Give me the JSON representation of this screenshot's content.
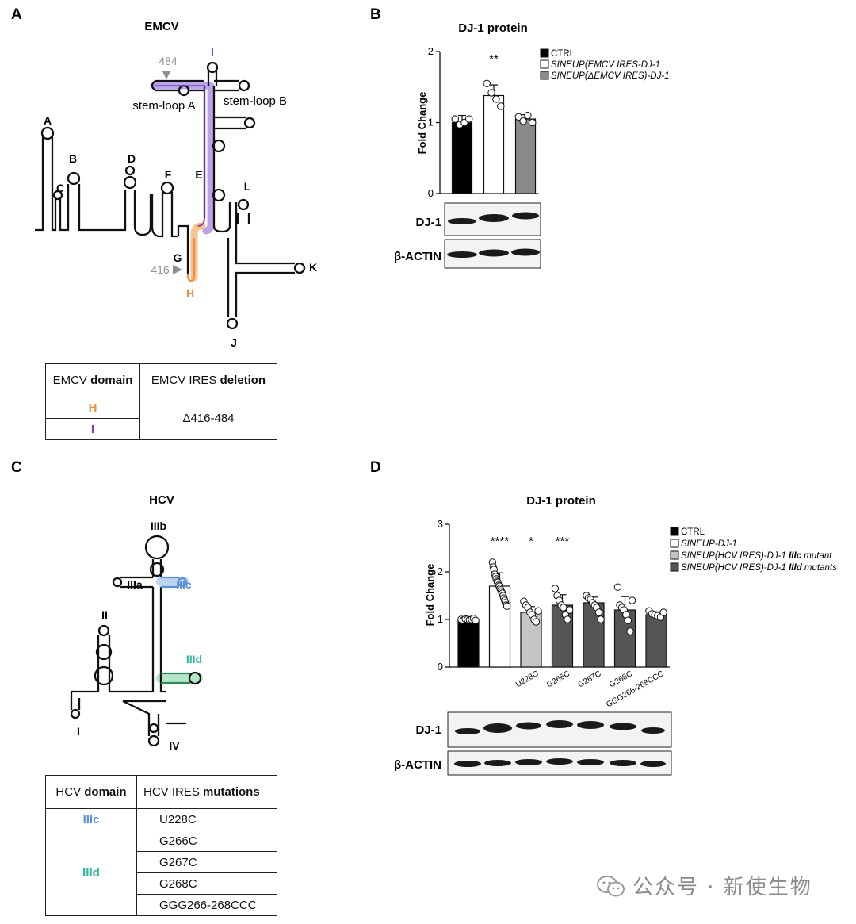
{
  "panels": {
    "A": {
      "letter": "A",
      "title": "EMCV",
      "labels": {
        "A": "A",
        "B": "B",
        "C": "C",
        "D": "D",
        "E": "E",
        "F": "F",
        "G": "G",
        "H": "H",
        "I": "I",
        "J": "J",
        "K": "K",
        "L": "L"
      },
      "marks": {
        "pos484": "484",
        "pos416": "416",
        "stemA": "stem-loop A",
        "stemB": "stem-loop B"
      },
      "table": {
        "header_domain_prefix": "EMCV ",
        "header_domain_bold": "domain",
        "header_del_prefix": "EMCV IRES ",
        "header_del_bold": "deletion",
        "rows": [
          "H",
          "I"
        ],
        "deletion": "Δ416-484"
      }
    },
    "B": {
      "letter": "B",
      "blot_labels": [
        "DJ-1",
        "β-ACTIN"
      ]
    },
    "C": {
      "letter": "C",
      "title": "HCV",
      "labels": {
        "IIIb": "IIIb",
        "IIIa": "IIIa",
        "IIIc": "IIIc",
        "II": "II",
        "IIId": "IIId",
        "I": "I",
        "IV": "IV"
      },
      "table": {
        "header_domain_prefix": "HCV ",
        "header_domain_bold": "domain",
        "header_mut_prefix": "HCV IRES ",
        "header_mut_bold": "mutations",
        "groups": [
          {
            "domain": "IIIc",
            "mutations": [
              "U228C"
            ]
          },
          {
            "domain": "IIId",
            "mutations": [
              "G266C",
              "G267C",
              "G268C",
              "GGG266-268CCC"
            ]
          }
        ]
      }
    },
    "D": {
      "letter": "D",
      "blot_labels": [
        "DJ-1",
        "β-ACTIN"
      ]
    }
  },
  "colors": {
    "orange": "#f28c38",
    "purple": "#7b3fc4",
    "blue": "#5b8fd6",
    "teal": "#2ab5a0",
    "gray_mark": "#8f8f8f",
    "bar_black": "#000000",
    "bar_white": "#ffffff",
    "bar_gray": "#8a8a8a",
    "bar_light": "#c4c4c4",
    "bar_dark": "#555555"
  },
  "chart_data": [
    {
      "type": "bar",
      "title": "DJ-1 protein",
      "xlabel": "",
      "ylabel": "Fold Change",
      "ylim": [
        0,
        2
      ],
      "yticks": [
        0,
        1,
        2
      ],
      "categories": [
        "CTRL",
        "SINEUP(EMCV IRES-DJ-1",
        "SINEUP(ΔEMCV IRES)-DJ-1"
      ],
      "values": [
        1.0,
        1.38,
        1.05
      ],
      "errors": [
        0.1,
        0.15,
        0.06
      ],
      "points": [
        [
          1.05,
          0.97,
          1.0,
          1.05
        ],
        [
          1.55,
          1.42,
          1.33,
          1.23
        ],
        [
          1.08,
          1.02,
          1.1,
          1.0
        ]
      ],
      "significance": [
        "",
        "**",
        ""
      ],
      "legend": [
        "CTRL",
        "SINEUP(EMCV IRES-DJ-1",
        "SINEUP(ΔEMCV IRES)-DJ-1"
      ],
      "legend_position": "top-right"
    },
    {
      "type": "bar",
      "title": "DJ-1 protein",
      "xlabel": "",
      "ylabel": "Fold Change",
      "ylim": [
        0,
        3
      ],
      "yticks": [
        0,
        1,
        2,
        3
      ],
      "categories": [
        "CTRL",
        "SINEUP-DJ-1",
        "U228C",
        "G266C",
        "G267C",
        "G268C",
        "GGG266-268CCC"
      ],
      "tick_labels": [
        "",
        "",
        "U228C",
        "G266C",
        "G267C",
        "G268C",
        "GGG266-268CCC"
      ],
      "values": [
        1.0,
        1.7,
        1.15,
        1.3,
        1.35,
        1.2,
        1.1
      ],
      "errors": [
        0.03,
        0.28,
        0.12,
        0.22,
        0.12,
        0.28,
        0.06
      ],
      "points": [
        [
          1.0,
          0.98,
          1.01,
          1.0,
          0.99,
          1.0,
          1.02,
          0.98
        ],
        [
          2.2,
          2.1,
          2.05,
          1.95,
          1.9,
          1.85,
          1.8,
          1.78,
          1.72,
          1.7,
          1.65,
          1.62,
          1.58,
          1.55,
          1.5,
          1.45,
          1.4,
          1.35,
          1.3,
          1.28
        ],
        [
          1.38,
          1.3,
          1.25,
          1.15,
          1.1,
          1.0,
          0.95,
          1.18
        ],
        [
          1.65,
          1.5,
          1.4,
          1.3,
          1.25,
          1.1,
          1.0,
          1.2
        ],
        [
          1.5,
          1.45,
          1.42,
          1.35,
          1.3,
          1.25,
          1.15,
          1.0
        ],
        [
          1.68,
          1.3,
          1.25,
          1.2,
          1.1,
          0.98,
          0.75,
          1.4
        ],
        [
          1.18,
          1.12,
          1.1,
          1.08,
          1.05,
          1.15
        ]
      ],
      "significance": [
        "",
        "****",
        "*",
        "***",
        "",
        "",
        ""
      ],
      "legend": [
        "CTRL",
        "SINEUP-DJ-1",
        "SINEUP(HCV IRES)-DJ-1 IIIc mutant",
        "SINEUP(HCV IRES)-DJ-1 IIId mutants"
      ],
      "legend_position": "top-right"
    }
  ],
  "watermark": "公众号 · 新使生物"
}
